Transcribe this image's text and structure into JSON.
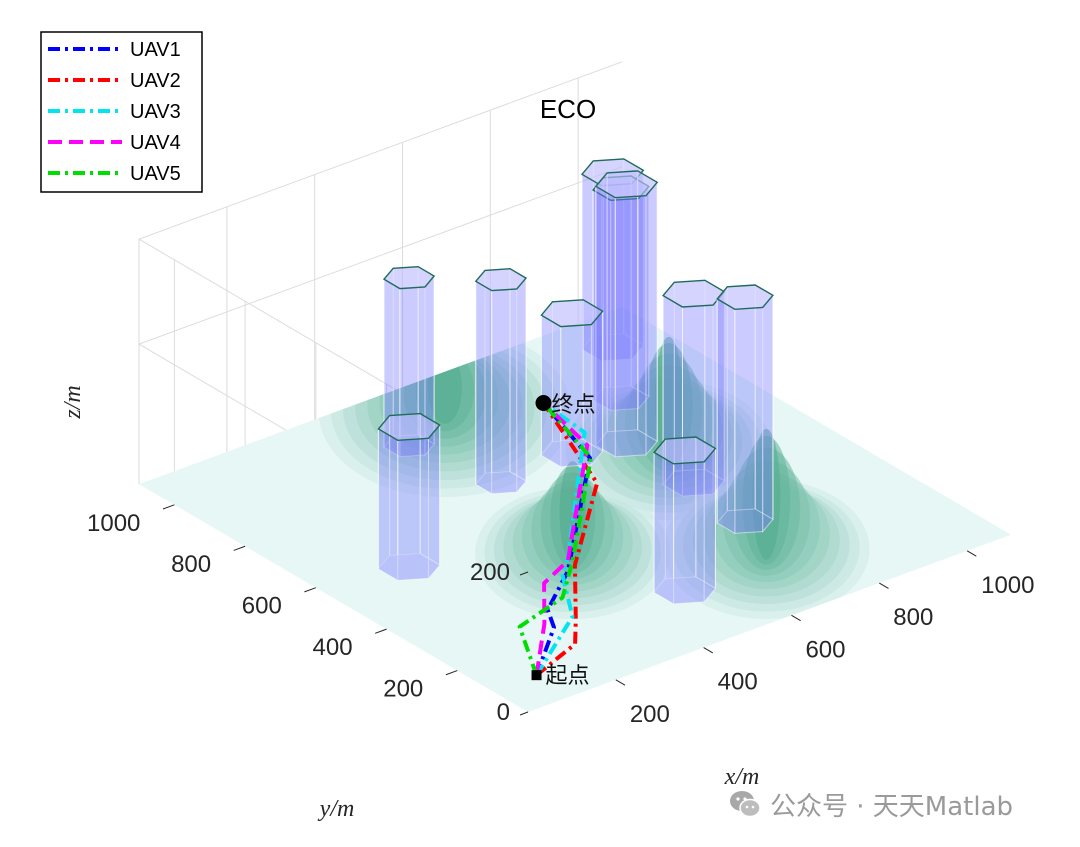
{
  "chart_data": {
    "type": "line",
    "plot_kind": "3d-path-planning",
    "title": "ECO",
    "xlabel": "x/m",
    "ylabel": "y/m",
    "zlabel": "z/m",
    "x_ticks": [
      "200",
      "400",
      "600",
      "800",
      "1000"
    ],
    "y_ticks": [
      "200",
      "400",
      "600",
      "800",
      "1000"
    ],
    "z_ticks": [
      "0",
      "200"
    ],
    "xlim": [
      0,
      1100
    ],
    "ylim": [
      0,
      1100
    ],
    "zlim": [
      0,
      350
    ],
    "grid": true,
    "legend_position": "top-left",
    "start_label": "起点",
    "end_label": "终点",
    "start_point": [
      100,
      100,
      0
    ],
    "end_point": [
      760,
      900,
      0
    ],
    "colors": {
      "UAV1": "#0000ff",
      "UAV2": "#ff0000",
      "UAV3": "#00e5ee",
      "UAV4": "#ff00ff",
      "UAV5": "#00dd00",
      "obstacle_fill": "#7b7bff",
      "obstacle_edge": "#1f6b5a",
      "terrain_low": "#e6f7f6",
      "terrain_high": "#4aa88a"
    },
    "terrain_peaks": [
      {
        "x": 720,
        "y": 220,
        "h": 160,
        "s": 90
      },
      {
        "x": 440,
        "y": 420,
        "h": 120,
        "s": 85
      },
      {
        "x": 820,
        "y": 620,
        "h": 150,
        "s": 90
      },
      {
        "x": 600,
        "y": 980,
        "h": 70,
        "s": 110
      }
    ],
    "obstacles": [
      {
        "x": 180,
        "y": 560,
        "r": 55,
        "h": 200
      },
      {
        "x": 510,
        "y": 190,
        "r": 55,
        "h": 200
      },
      {
        "x": 760,
        "y": 330,
        "r": 50,
        "h": 320
      },
      {
        "x": 510,
        "y": 710,
        "r": 45,
        "h": 290
      },
      {
        "x": 470,
        "y": 920,
        "r": 45,
        "h": 240
      },
      {
        "x": 680,
        "y": 720,
        "r": 55,
        "h": 200
      },
      {
        "x": 990,
        "y": 990,
        "r": 55,
        "h": 250
      },
      {
        "x": 880,
        "y": 830,
        "r": 50,
        "h": 300
      },
      {
        "x": 780,
        "y": 690,
        "r": 55,
        "h": 370
      },
      {
        "x": 780,
        "y": 500,
        "r": 55,
        "h": 270
      }
    ],
    "series": [
      {
        "name": "UAV1",
        "style": "dashdot",
        "points": [
          [
            100,
            100,
            0
          ],
          [
            180,
            150,
            35
          ],
          [
            230,
            230,
            25
          ],
          [
            300,
            260,
            55
          ],
          [
            560,
            520,
            80
          ],
          [
            760,
            900,
            0
          ]
        ]
      },
      {
        "name": "UAV2",
        "style": "dashdot",
        "points": [
          [
            100,
            100,
            0
          ],
          [
            220,
            140,
            5
          ],
          [
            270,
            200,
            10
          ],
          [
            300,
            240,
            70
          ],
          [
            560,
            500,
            50
          ],
          [
            760,
            900,
            0
          ]
        ]
      },
      {
        "name": "UAV3",
        "style": "dashdot",
        "points": [
          [
            100,
            100,
            0
          ],
          [
            190,
            110,
            60
          ],
          [
            240,
            200,
            80
          ],
          [
            300,
            260,
            75
          ],
          [
            580,
            560,
            100
          ],
          [
            760,
            900,
            0
          ]
        ]
      },
      {
        "name": "UAV4",
        "style": "dashed",
        "points": [
          [
            100,
            100,
            0
          ],
          [
            150,
            140,
            50
          ],
          [
            230,
            240,
            60
          ],
          [
            300,
            260,
            70
          ],
          [
            570,
            540,
            90
          ],
          [
            760,
            900,
            0
          ]
        ]
      },
      {
        "name": "UAV5",
        "style": "dashdot",
        "points": [
          [
            100,
            100,
            0
          ],
          [
            150,
            210,
            25
          ],
          [
            280,
            250,
            25
          ],
          [
            310,
            260,
            65
          ],
          [
            570,
            530,
            75
          ],
          [
            760,
            900,
            0
          ]
        ]
      }
    ]
  },
  "watermark": {
    "text": "公众号 · 天天Matlab",
    "icon": "wechat-icon"
  }
}
